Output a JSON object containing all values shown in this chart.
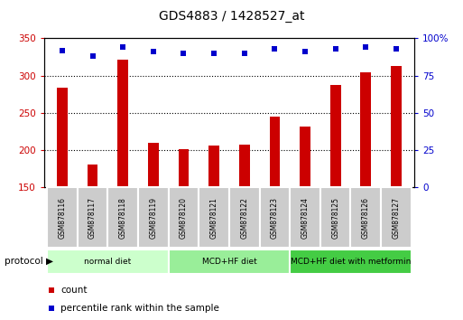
{
  "title": "GDS4883 / 1428527_at",
  "samples": [
    "GSM878116",
    "GSM878117",
    "GSM878118",
    "GSM878119",
    "GSM878120",
    "GSM878121",
    "GSM878122",
    "GSM878123",
    "GSM878124",
    "GSM878125",
    "GSM878126",
    "GSM878127"
  ],
  "bar_values": [
    284,
    181,
    322,
    210,
    201,
    206,
    207,
    245,
    231,
    288,
    305,
    313
  ],
  "percentile_values": [
    92,
    88,
    94,
    91,
    90,
    90,
    90,
    93,
    91,
    93,
    94,
    93
  ],
  "bar_color": "#cc0000",
  "percentile_color": "#0000cc",
  "ylim_left": [
    150,
    350
  ],
  "ylim_right": [
    0,
    100
  ],
  "yticks_left": [
    150,
    200,
    250,
    300,
    350
  ],
  "yticks_right": [
    0,
    25,
    50,
    75,
    100
  ],
  "grid_values": [
    200,
    250,
    300
  ],
  "background_color": "#ffffff",
  "protocol_groups": [
    {
      "label": "normal diet",
      "start": 0,
      "end": 4,
      "color": "#ccffcc"
    },
    {
      "label": "MCD+HF diet",
      "start": 4,
      "end": 8,
      "color": "#99ee99"
    },
    {
      "label": "MCD+HF diet with metformin",
      "start": 8,
      "end": 12,
      "color": "#44cc44"
    }
  ],
  "protocol_label": "protocol",
  "legend_count_label": "count",
  "legend_pct_label": "percentile rank within the sample",
  "label_bg_color": "#cccccc",
  "label_border_color": "#ffffff"
}
